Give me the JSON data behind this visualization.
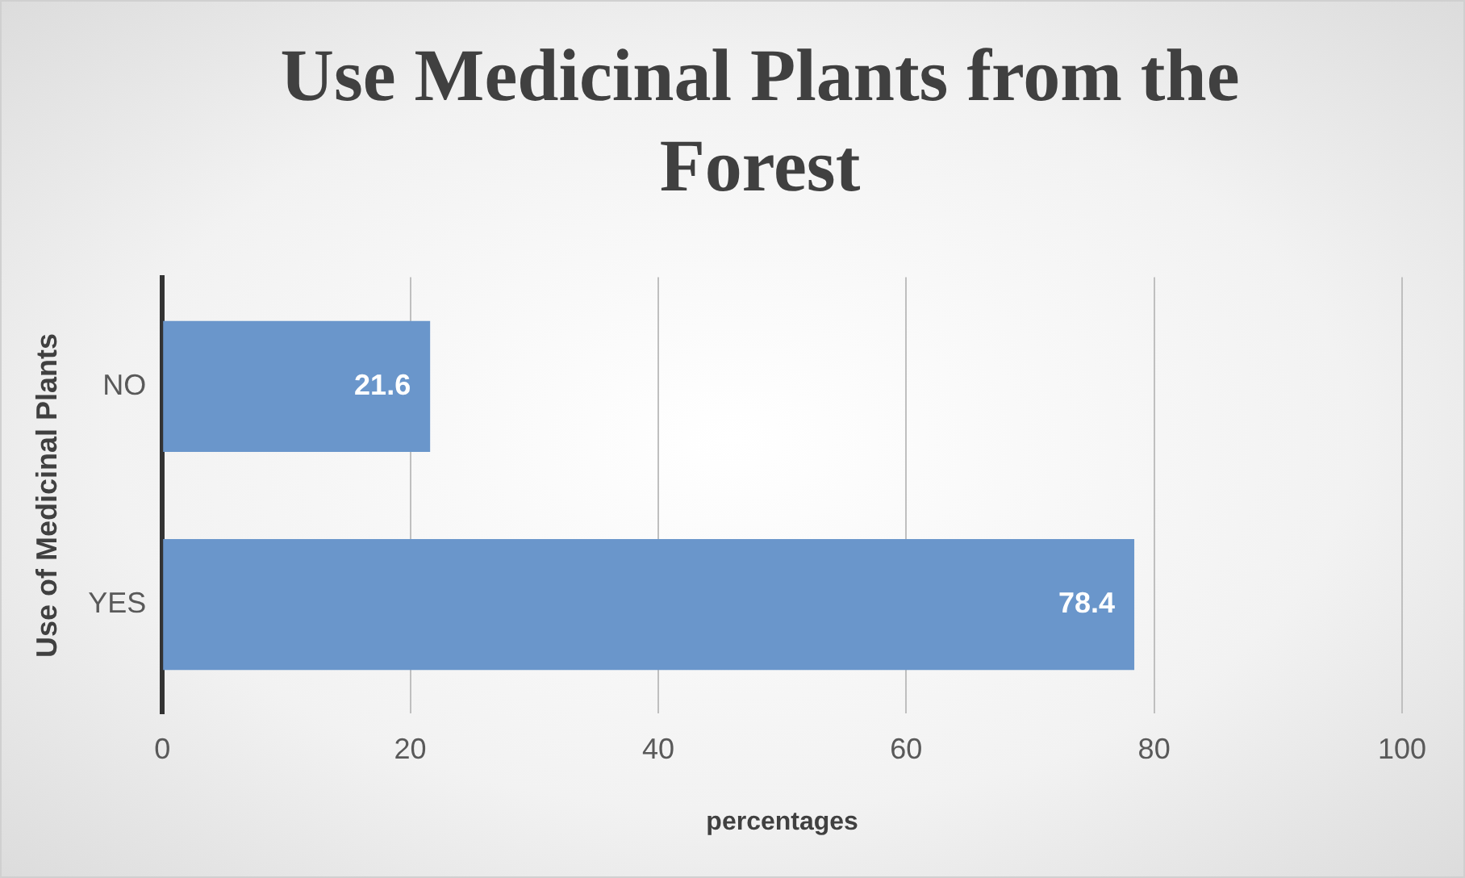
{
  "chart_data": {
    "type": "bar",
    "orientation": "horizontal",
    "title": "Use Medicinal Plants from the Forest",
    "xlabel": "percentages",
    "ylabel": "Use of Medicinal Plants",
    "categories": [
      "NO",
      "YES"
    ],
    "values": [
      21.6,
      78.4
    ],
    "color": "#6a96cb",
    "xlim": [
      0,
      100
    ],
    "xticks": [
      0,
      20,
      40,
      60,
      80,
      100
    ],
    "grid": "x",
    "data_labels": true
  }
}
